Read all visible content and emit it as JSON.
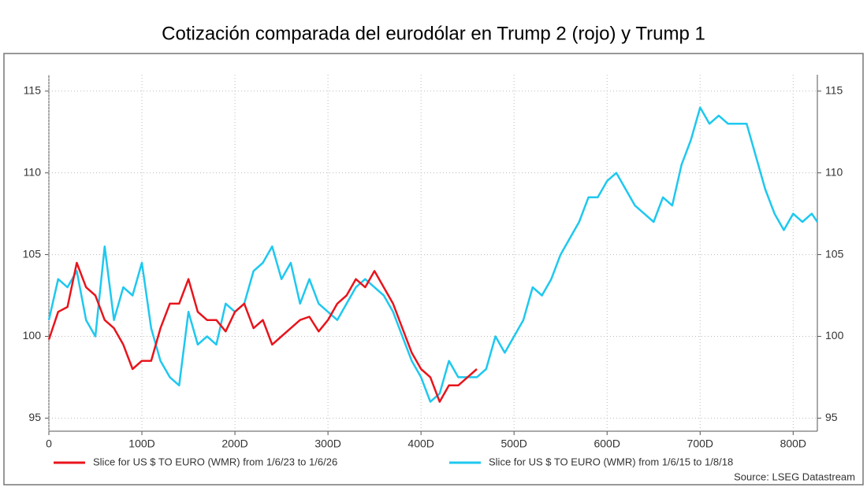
{
  "chart_data": {
    "type": "line",
    "title": "Cotización comparada del eurodólar en Trump 2 (rojo) y Trump 1",
    "source": "Source: LSEG Datastream",
    "xlim": [
      0,
      826
    ],
    "ylim": [
      94.2,
      116
    ],
    "xticks": [
      0,
      {
        "value": 100,
        "label": "100D"
      },
      {
        "value": 200,
        "label": "200D"
      },
      {
        "value": 300,
        "label": "300D"
      },
      {
        "value": 400,
        "label": "400D"
      },
      {
        "value": 500,
        "label": "500D"
      },
      {
        "value": 600,
        "label": "600D"
      },
      {
        "value": 700,
        "label": "700D"
      },
      {
        "value": 800,
        "label": "800D"
      }
    ],
    "yticks": [
      95,
      100,
      105,
      110,
      115
    ],
    "grid": true,
    "series": [
      {
        "name": "Slice for US $ TO EURO (WMR) from 1/6/23 to 1/6/26",
        "color": "#e8141c",
        "x": [
          0,
          10,
          20,
          30,
          40,
          50,
          60,
          70,
          80,
          90,
          100,
          110,
          120,
          130,
          140,
          150,
          160,
          170,
          180,
          190,
          200,
          210,
          220,
          230,
          240,
          250,
          260,
          270,
          280,
          290,
          300,
          310,
          320,
          330,
          340,
          350,
          360,
          370,
          380,
          390,
          400,
          410,
          420,
          430,
          440,
          450,
          460
        ],
        "values": [
          99.8,
          101.5,
          101.8,
          104.5,
          103,
          102.5,
          101,
          100.5,
          99.5,
          98,
          98.5,
          98.5,
          100.5,
          102,
          102,
          103.5,
          101.5,
          101,
          101,
          100.3,
          101.5,
          102,
          100.5,
          101,
          99.5,
          100,
          100.5,
          101,
          101.2,
          100.3,
          101,
          102,
          102.5,
          103.5,
          103,
          104,
          103,
          102,
          100.5,
          99,
          98,
          97.5,
          96,
          97,
          97,
          97.5,
          98
        ]
      },
      {
        "name": "Slice for US $ TO EURO (WMR) from 1/6/15 to 1/8/18",
        "color": "#1ec8ef",
        "x": [
          0,
          10,
          20,
          30,
          40,
          50,
          60,
          70,
          80,
          90,
          100,
          110,
          120,
          130,
          140,
          150,
          160,
          170,
          180,
          190,
          200,
          210,
          220,
          230,
          240,
          250,
          260,
          270,
          280,
          290,
          300,
          310,
          320,
          330,
          340,
          350,
          360,
          370,
          380,
          390,
          400,
          410,
          420,
          430,
          440,
          450,
          460,
          470,
          480,
          490,
          500,
          510,
          520,
          530,
          540,
          550,
          560,
          570,
          580,
          590,
          600,
          610,
          620,
          630,
          640,
          650,
          660,
          670,
          680,
          690,
          700,
          710,
          720,
          730,
          740,
          750,
          760,
          770,
          780,
          790,
          800,
          810,
          820,
          826
        ],
        "values": [
          101,
          103.5,
          103,
          104,
          101,
          100,
          105.5,
          101,
          103,
          102.5,
          104.5,
          100.5,
          98.5,
          97.5,
          97,
          101.5,
          99.5,
          100,
          99.5,
          102,
          101.5,
          102,
          104,
          104.5,
          105.5,
          103.5,
          104.5,
          102,
          103.5,
          102,
          101.5,
          101,
          102,
          103,
          103.5,
          103,
          102.5,
          101.5,
          100,
          98.5,
          97.5,
          96,
          96.5,
          98.5,
          97.5,
          97.5,
          97.5,
          98,
          100,
          99,
          100,
          101,
          103,
          102.5,
          103.5,
          105,
          106,
          107,
          108.5,
          108.5,
          109.5,
          110,
          109,
          108,
          107.5,
          107,
          108.5,
          108,
          110.5,
          112,
          114,
          113,
          113.5,
          113,
          113,
          113,
          111,
          109,
          107.5,
          106.5,
          107.5,
          107,
          107.5,
          107
        ]
      }
    ]
  }
}
